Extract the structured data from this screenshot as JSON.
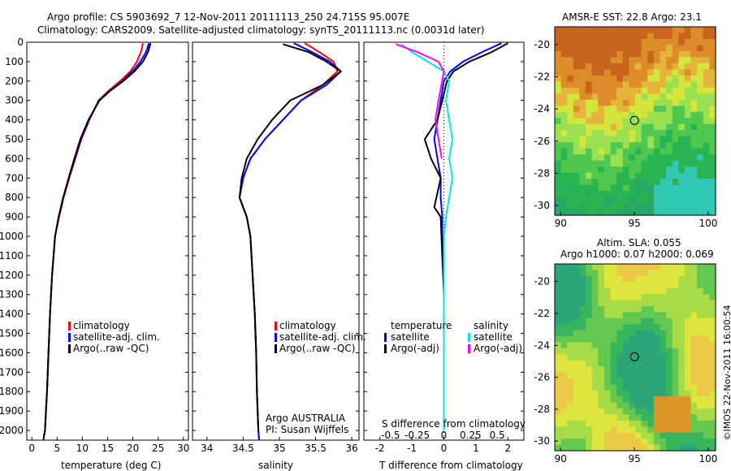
{
  "header": {
    "line1": "Argo profile: CS 5903692_7 12-Nov-2011 20111113_250 24.715S 95.007E",
    "line2": "Climatology: CARS2009. Satellite-adjusted climatology: synTS_20111113.nc (0.0031d later)"
  },
  "depth_ticks": [
    "0",
    "100",
    "200",
    "300",
    "400",
    "500",
    "600",
    "700",
    "800",
    "900",
    "1000",
    "1100",
    "1200",
    "1300",
    "1400",
    "1500",
    "1600",
    "1700",
    "1800",
    "1900",
    "2000"
  ],
  "colors": {
    "climatology": "#ff0000",
    "satellite": "#0000ff",
    "argo": "#000000",
    "sat_salinity": "#00e5ee",
    "argo_salinity": "#ff00ff"
  },
  "panels": {
    "temperature": {
      "xlabel": "temperature (deg C)",
      "xticks": [
        "0",
        "5",
        "10",
        "15",
        "20",
        "25",
        "30"
      ],
      "legend": [
        "climatology",
        "satellite-adj. clim.",
        "Argo(..raw -QC)"
      ]
    },
    "salinity": {
      "xlabel": "salinity",
      "xticks": [
        "34",
        "34.5",
        "35",
        "35.5",
        "36"
      ],
      "legend": [
        "climatology",
        "satellite-adj. clim.",
        "Argo(..raw -QC)"
      ],
      "note1": "Argo AUSTRALIA",
      "note2": "PI: Susan Wijffels"
    },
    "difference": {
      "xlabel": "T difference from climatology",
      "xticks": [
        "-2",
        "-1",
        "0",
        "1",
        "2"
      ],
      "top_label": "S difference from climatology",
      "s_ticks": [
        "-0.5",
        "-0.25",
        "0",
        "0.25",
        "0.5"
      ],
      "legend_temp_title": "temperature",
      "legend_sal_title": "salinity",
      "legend_sat": "satellite",
      "legend_argo": "Argo(-adj)"
    },
    "sst_map": {
      "title": "AMSR-E SST: 22.8 Argo: 23.1",
      "yticks": [
        "-20",
        "-22",
        "-24",
        "-26",
        "-28",
        "-30"
      ],
      "xticks": [
        "90",
        "95",
        "100"
      ]
    },
    "sla_map": {
      "title1": "Altim. SLA: 0.055",
      "title2": "Argo h1000: 0.07 h2000: 0.069",
      "yticks": [
        "-20",
        "-22",
        "-24",
        "-26",
        "-28",
        "-30"
      ],
      "xticks": [
        "90",
        "95",
        "100"
      ]
    }
  },
  "credit": "©IMOS 22-Nov-2011 16:00:54",
  "chart_data": [
    {
      "type": "line",
      "title": "",
      "xlabel": "temperature (deg C)",
      "ylabel": "",
      "xlim": [
        -1,
        31
      ],
      "ylim": [
        2050,
        0
      ],
      "series": [
        {
          "name": "climatology",
          "x": [
            22.0,
            21.6,
            20.8,
            19.5,
            17.5,
            15.2,
            13.2,
            11.4,
            9.8,
            8.6,
            7.4,
            6.3,
            5.4,
            4.6,
            4.0,
            3.6,
            3.3,
            3.0,
            2.8,
            2.6,
            2.4,
            2.3
          ],
          "y": [
            5,
            50,
            100,
            150,
            200,
            250,
            300,
            400,
            500,
            600,
            700,
            800,
            900,
            1000,
            1200,
            1400,
            1600,
            1800,
            1900,
            2000,
            2030,
            2050
          ]
        },
        {
          "name": "satellite-adj. clim.",
          "x": [
            23.2,
            22.6,
            21.5,
            19.9,
            17.9,
            15.4,
            13.3,
            11.3,
            9.7,
            8.5,
            7.3,
            6.2,
            5.3,
            4.6,
            4.0,
            3.6,
            3.3,
            3.0,
            2.8,
            2.6,
            2.4,
            2.3
          ],
          "y": [
            5,
            50,
            100,
            150,
            200,
            250,
            300,
            400,
            500,
            600,
            700,
            800,
            900,
            1000,
            1200,
            1400,
            1600,
            1800,
            1900,
            2000,
            2030,
            2050
          ]
        },
        {
          "name": "Argo(..raw -QC)",
          "x": [
            23.5,
            23.0,
            22.0,
            20.3,
            18.1,
            15.5,
            13.4,
            11.2,
            9.6,
            8.4,
            7.3,
            6.2,
            5.3,
            4.6,
            4.0,
            3.6,
            3.3,
            3.0,
            2.8,
            2.6,
            2.4
          ],
          "y": [
            5,
            50,
            100,
            150,
            200,
            250,
            300,
            400,
            500,
            600,
            700,
            800,
            900,
            1000,
            1200,
            1400,
            1600,
            1800,
            1900,
            2000,
            2030
          ]
        }
      ]
    },
    {
      "type": "line",
      "title": "",
      "xlabel": "salinity",
      "ylabel": "",
      "xlim": [
        33.8,
        36.1
      ],
      "ylim": [
        2050,
        0
      ],
      "series": [
        {
          "name": "climatology",
          "x": [
            35.35,
            35.55,
            35.75,
            35.8,
            35.6,
            35.3,
            35.05,
            34.8,
            34.6,
            34.5,
            34.45,
            34.55,
            34.6,
            34.63,
            34.66,
            34.68,
            34.69,
            34.7,
            34.71,
            34.72
          ],
          "y": [
            5,
            50,
            100,
            150,
            220,
            300,
            400,
            500,
            600,
            700,
            800,
            900,
            1000,
            1200,
            1400,
            1600,
            1800,
            1900,
            2000,
            2050
          ]
        },
        {
          "name": "satellite-adj. clim.",
          "x": [
            35.2,
            35.45,
            35.7,
            35.85,
            35.65,
            35.3,
            35.05,
            34.8,
            34.6,
            34.5,
            34.45,
            34.55,
            34.6,
            34.63,
            34.66,
            34.68,
            34.69,
            34.7,
            34.71,
            34.72
          ],
          "y": [
            5,
            50,
            100,
            150,
            220,
            300,
            400,
            500,
            600,
            700,
            800,
            900,
            1000,
            1200,
            1400,
            1600,
            1800,
            1900,
            2000,
            2050
          ]
        },
        {
          "name": "Argo(..raw -QC)",
          "x": [
            35.05,
            35.4,
            35.65,
            35.85,
            35.6,
            35.15,
            34.9,
            34.7,
            34.55,
            34.48,
            34.45,
            34.55,
            34.6,
            34.63,
            34.66,
            34.68,
            34.69,
            34.7,
            34.71
          ],
          "y": [
            10,
            50,
            100,
            150,
            220,
            300,
            400,
            500,
            600,
            700,
            800,
            900,
            1000,
            1200,
            1400,
            1600,
            1800,
            1900,
            2000
          ]
        }
      ]
    },
    {
      "type": "line",
      "title": "",
      "xlabel": "T difference from climatology",
      "ylabel": "",
      "xlim": [
        -2.5,
        2.5
      ],
      "ylim": [
        2050,
        0
      ],
      "series": [
        {
          "name": "temperature satellite",
          "x": [
            1.8,
            1.2,
            0.6,
            0.2,
            0.0,
            -0.1,
            -0.2,
            -0.3,
            -0.2,
            -0.1,
            -0.1,
            -0.05,
            -0.05,
            0.0,
            0.0,
            0.0
          ],
          "y": [
            5,
            50,
            100,
            150,
            200,
            300,
            400,
            500,
            600,
            700,
            800,
            900,
            1000,
            1200,
            1600,
            2000
          ]
        },
        {
          "name": "temperature Argo(-adj)",
          "x": [
            2.0,
            1.5,
            0.8,
            0.3,
            0.1,
            -0.05,
            -0.2,
            -0.6,
            -0.4,
            -0.1,
            -0.3,
            -0.1,
            -0.05,
            0.0,
            0.0,
            0.0
          ],
          "y": [
            5,
            50,
            100,
            150,
            200,
            300,
            400,
            500,
            600,
            700,
            850,
            900,
            1100,
            1300,
            1600,
            2000
          ]
        },
        {
          "name": "salinity satellite",
          "x": [
            -0.4,
            -0.3,
            -0.15,
            0.0,
            0.05,
            0.02,
            0.05,
            0.08,
            0.05,
            0.08,
            0.05,
            0.02,
            0.0,
            0.0,
            0.0
          ],
          "y": [
            10,
            50,
            100,
            150,
            200,
            300,
            400,
            500,
            600,
            700,
            800,
            900,
            1000,
            1500,
            2000
          ]
        },
        {
          "name": "salinity Argo(-adj)",
          "x": [
            -0.45,
            -0.25,
            -0.05,
            0.0,
            -0.05,
            -0.08,
            -0.05,
            -0.02
          ],
          "y": [
            10,
            50,
            100,
            150,
            300,
            400,
            500,
            600
          ]
        }
      ]
    }
  ]
}
